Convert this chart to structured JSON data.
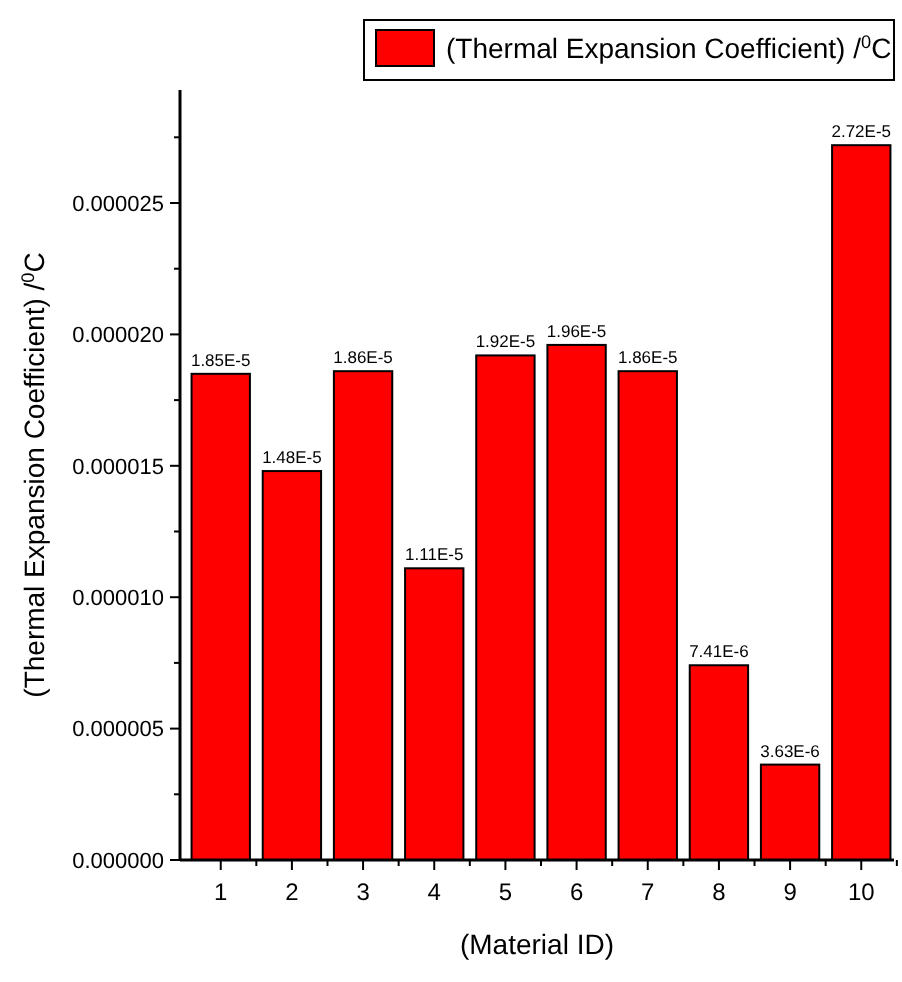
{
  "chart_data": {
    "type": "bar",
    "xlabel": "(Material ID)",
    "ylabel": "(Thermal Expansion Coefficient) /$^{0}$C",
    "categories": [
      "1",
      "2",
      "3",
      "4",
      "5",
      "6",
      "7",
      "8",
      "9",
      "10"
    ],
    "series": [
      {
        "name": "(Thermal Expansion Coefficient) /$^{0}$C",
        "color": "#ff0000",
        "values": [
          1.85e-05,
          1.48e-05,
          1.86e-05,
          1.11e-05,
          1.92e-05,
          1.96e-05,
          1.86e-05,
          7.41e-06,
          3.63e-06,
          2.72e-05
        ],
        "value_labels": [
          "1.85E-5",
          "1.48E-5",
          "1.86E-5",
          "1.11E-5",
          "1.92E-5",
          "1.96E-5",
          "1.86E-5",
          "7.41E-6",
          "3.63E-6",
          "2.72E-5"
        ]
      }
    ],
    "ylim": [
      0,
      2.93e-05
    ],
    "yticks": [
      {
        "value": 0,
        "label": "0.000000"
      },
      {
        "value": 2.5e-06,
        "label": null
      },
      {
        "value": 5e-06,
        "label": "0.000005"
      },
      {
        "value": 7.5e-06,
        "label": null
      },
      {
        "value": 1e-05,
        "label": "0.000010"
      },
      {
        "value": 1.25e-05,
        "label": null
      },
      {
        "value": 1.5e-05,
        "label": "0.000015"
      },
      {
        "value": 1.75e-05,
        "label": null
      },
      {
        "value": 2e-05,
        "label": "0.000020"
      },
      {
        "value": 2.25e-05,
        "label": null
      },
      {
        "value": 2.5e-05,
        "label": "0.000025"
      },
      {
        "value": 2.75e-05,
        "label": null
      }
    ],
    "legend": "top right"
  }
}
